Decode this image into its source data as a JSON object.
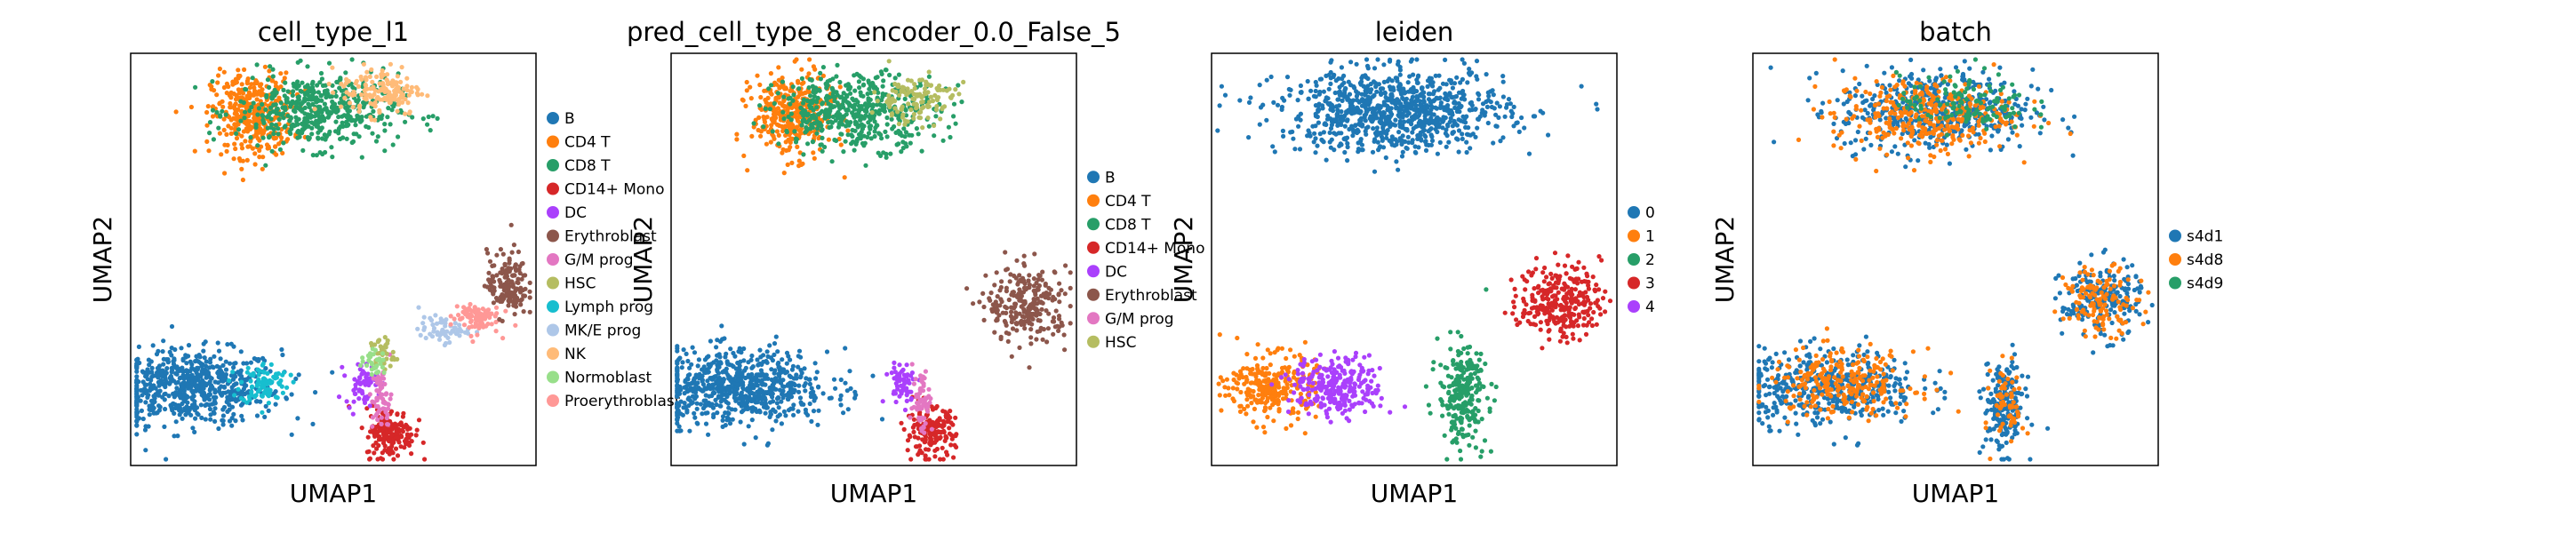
{
  "chart_data": [
    {
      "type": "scatter",
      "title": "cell_type_l1",
      "xlabel": "UMAP1",
      "ylabel": "UMAP2",
      "grid": false,
      "legend_position": "right",
      "legend": [
        {
          "name": "B",
          "color": "#1f77b4"
        },
        {
          "name": "CD4 T",
          "color": "#ff7f0e"
        },
        {
          "name": "CD8 T",
          "color": "#279e68"
        },
        {
          "name": "CD14+ Mono",
          "color": "#d62728"
        },
        {
          "name": "DC",
          "color": "#aa40fc"
        },
        {
          "name": "Erythroblast",
          "color": "#8c564b"
        },
        {
          "name": "G/M prog",
          "color": "#e377c2"
        },
        {
          "name": "HSC",
          "color": "#b5bd61"
        },
        {
          "name": "Lymph prog",
          "color": "#17becf"
        },
        {
          "name": "MK/E prog",
          "color": "#aec7e8"
        },
        {
          "name": "NK",
          "color": "#ffbb78"
        },
        {
          "name": "Normoblast",
          "color": "#98df8a"
        },
        {
          "name": "Proerythroblast",
          "color": "#ff9896"
        }
      ],
      "clusters": [
        {
          "label": "B",
          "x": 0.15,
          "y": 0.19,
          "sx": 0.11,
          "sy": 0.045,
          "n": 650
        },
        {
          "label": "Lymph prog",
          "x": 0.33,
          "y": 0.2,
          "sx": 0.03,
          "sy": 0.025,
          "n": 90
        },
        {
          "label": "CD4 T",
          "x": 0.3,
          "y": 0.85,
          "sx": 0.05,
          "sy": 0.05,
          "n": 380
        },
        {
          "label": "CD8 T",
          "x": 0.46,
          "y": 0.86,
          "sx": 0.1,
          "sy": 0.045,
          "n": 480
        },
        {
          "label": "NK",
          "x": 0.62,
          "y": 0.91,
          "sx": 0.05,
          "sy": 0.03,
          "n": 150
        },
        {
          "label": "CD14+ Mono",
          "x": 0.64,
          "y": 0.08,
          "sx": 0.03,
          "sy": 0.03,
          "n": 180
        },
        {
          "label": "DC",
          "x": 0.57,
          "y": 0.2,
          "sx": 0.02,
          "sy": 0.025,
          "n": 60
        },
        {
          "label": "G/M prog",
          "x": 0.62,
          "y": 0.16,
          "sx": 0.012,
          "sy": 0.04,
          "n": 60
        },
        {
          "label": "HSC",
          "x": 0.62,
          "y": 0.27,
          "sx": 0.015,
          "sy": 0.02,
          "n": 40
        },
        {
          "label": "MK/E prog",
          "x": 0.77,
          "y": 0.33,
          "sx": 0.03,
          "sy": 0.015,
          "n": 60
        },
        {
          "label": "Proerythroblast",
          "x": 0.85,
          "y": 0.36,
          "sx": 0.03,
          "sy": 0.02,
          "n": 90
        },
        {
          "label": "Erythroblast",
          "x": 0.93,
          "y": 0.44,
          "sx": 0.025,
          "sy": 0.04,
          "n": 150
        },
        {
          "label": "Normoblast",
          "x": 0.6,
          "y": 0.25,
          "sx": 0.015,
          "sy": 0.015,
          "n": 30
        }
      ]
    },
    {
      "type": "scatter",
      "title": "pred_cell_type_8_encoder_0.0_False_5",
      "xlabel": "UMAP1",
      "ylabel": "UMAP2",
      "grid": false,
      "legend_position": "right",
      "legend": [
        {
          "name": "B",
          "color": "#1f77b4"
        },
        {
          "name": "CD4 T",
          "color": "#ff7f0e"
        },
        {
          "name": "CD8 T",
          "color": "#279e68"
        },
        {
          "name": "CD14+ Mono",
          "color": "#d62728"
        },
        {
          "name": "DC",
          "color": "#aa40fc"
        },
        {
          "name": "Erythroblast",
          "color": "#8c564b"
        },
        {
          "name": "G/M prog",
          "color": "#e377c2"
        },
        {
          "name": "HSC",
          "color": "#b5bd61"
        }
      ],
      "clusters": [
        {
          "label": "B",
          "x": 0.17,
          "y": 0.19,
          "sx": 0.11,
          "sy": 0.045,
          "n": 700
        },
        {
          "label": "CD4 T",
          "x": 0.3,
          "y": 0.85,
          "sx": 0.05,
          "sy": 0.05,
          "n": 380
        },
        {
          "label": "CD8 T",
          "x": 0.46,
          "y": 0.86,
          "sx": 0.1,
          "sy": 0.045,
          "n": 480
        },
        {
          "label": "HSC",
          "x": 0.6,
          "y": 0.89,
          "sx": 0.05,
          "sy": 0.03,
          "n": 120
        },
        {
          "label": "CD14+ Mono",
          "x": 0.64,
          "y": 0.08,
          "sx": 0.03,
          "sy": 0.03,
          "n": 180
        },
        {
          "label": "DC",
          "x": 0.57,
          "y": 0.2,
          "sx": 0.02,
          "sy": 0.025,
          "n": 60
        },
        {
          "label": "G/M prog",
          "x": 0.62,
          "y": 0.16,
          "sx": 0.012,
          "sy": 0.04,
          "n": 60
        },
        {
          "label": "Erythroblast",
          "x": 0.88,
          "y": 0.39,
          "sx": 0.05,
          "sy": 0.045,
          "n": 260
        }
      ]
    },
    {
      "type": "scatter",
      "title": "leiden",
      "xlabel": "UMAP1",
      "ylabel": "UMAP2",
      "grid": false,
      "legend_position": "right",
      "legend": [
        {
          "name": "0",
          "color": "#1f77b4"
        },
        {
          "name": "1",
          "color": "#ff7f0e"
        },
        {
          "name": "2",
          "color": "#279e68"
        },
        {
          "name": "3",
          "color": "#d62728"
        },
        {
          "name": "4",
          "color": "#aa40fc"
        }
      ],
      "clusters": [
        {
          "label": "0",
          "x": 0.45,
          "y": 0.86,
          "sx": 0.14,
          "sy": 0.05,
          "n": 900
        },
        {
          "label": "1",
          "x": 0.15,
          "y": 0.19,
          "sx": 0.055,
          "sy": 0.04,
          "n": 280
        },
        {
          "label": "2",
          "x": 0.62,
          "y": 0.17,
          "sx": 0.03,
          "sy": 0.06,
          "n": 260
        },
        {
          "label": "3",
          "x": 0.86,
          "y": 0.4,
          "sx": 0.05,
          "sy": 0.045,
          "n": 280
        },
        {
          "label": "4",
          "x": 0.31,
          "y": 0.19,
          "sx": 0.055,
          "sy": 0.035,
          "n": 280
        }
      ]
    },
    {
      "type": "scatter",
      "title": "batch",
      "xlabel": "UMAP1",
      "ylabel": "UMAP2",
      "grid": false,
      "legend_position": "right",
      "legend": [
        {
          "name": "s4d1",
          "color": "#1f77b4"
        },
        {
          "name": "s4d8",
          "color": "#ff7f0e"
        },
        {
          "name": "s4d9",
          "color": "#279e68"
        }
      ],
      "clusters": [
        {
          "label": "s4d1",
          "x": 0.45,
          "y": 0.86,
          "sx": 0.12,
          "sy": 0.05,
          "n": 500
        },
        {
          "label": "s4d8",
          "x": 0.42,
          "y": 0.85,
          "sx": 0.11,
          "sy": 0.045,
          "n": 350
        },
        {
          "label": "s4d9",
          "x": 0.52,
          "y": 0.88,
          "sx": 0.08,
          "sy": 0.035,
          "n": 120
        },
        {
          "label": "s4d1",
          "x": 0.19,
          "y": 0.19,
          "sx": 0.11,
          "sy": 0.045,
          "n": 450
        },
        {
          "label": "s4d8",
          "x": 0.22,
          "y": 0.2,
          "sx": 0.09,
          "sy": 0.04,
          "n": 250
        },
        {
          "label": "s4d1",
          "x": 0.62,
          "y": 0.14,
          "sx": 0.025,
          "sy": 0.055,
          "n": 200
        },
        {
          "label": "s4d8",
          "x": 0.63,
          "y": 0.15,
          "sx": 0.02,
          "sy": 0.05,
          "n": 60
        },
        {
          "label": "s4d1",
          "x": 0.86,
          "y": 0.4,
          "sx": 0.05,
          "sy": 0.045,
          "n": 200
        },
        {
          "label": "s4d8",
          "x": 0.86,
          "y": 0.4,
          "sx": 0.045,
          "sy": 0.04,
          "n": 130
        }
      ]
    }
  ]
}
